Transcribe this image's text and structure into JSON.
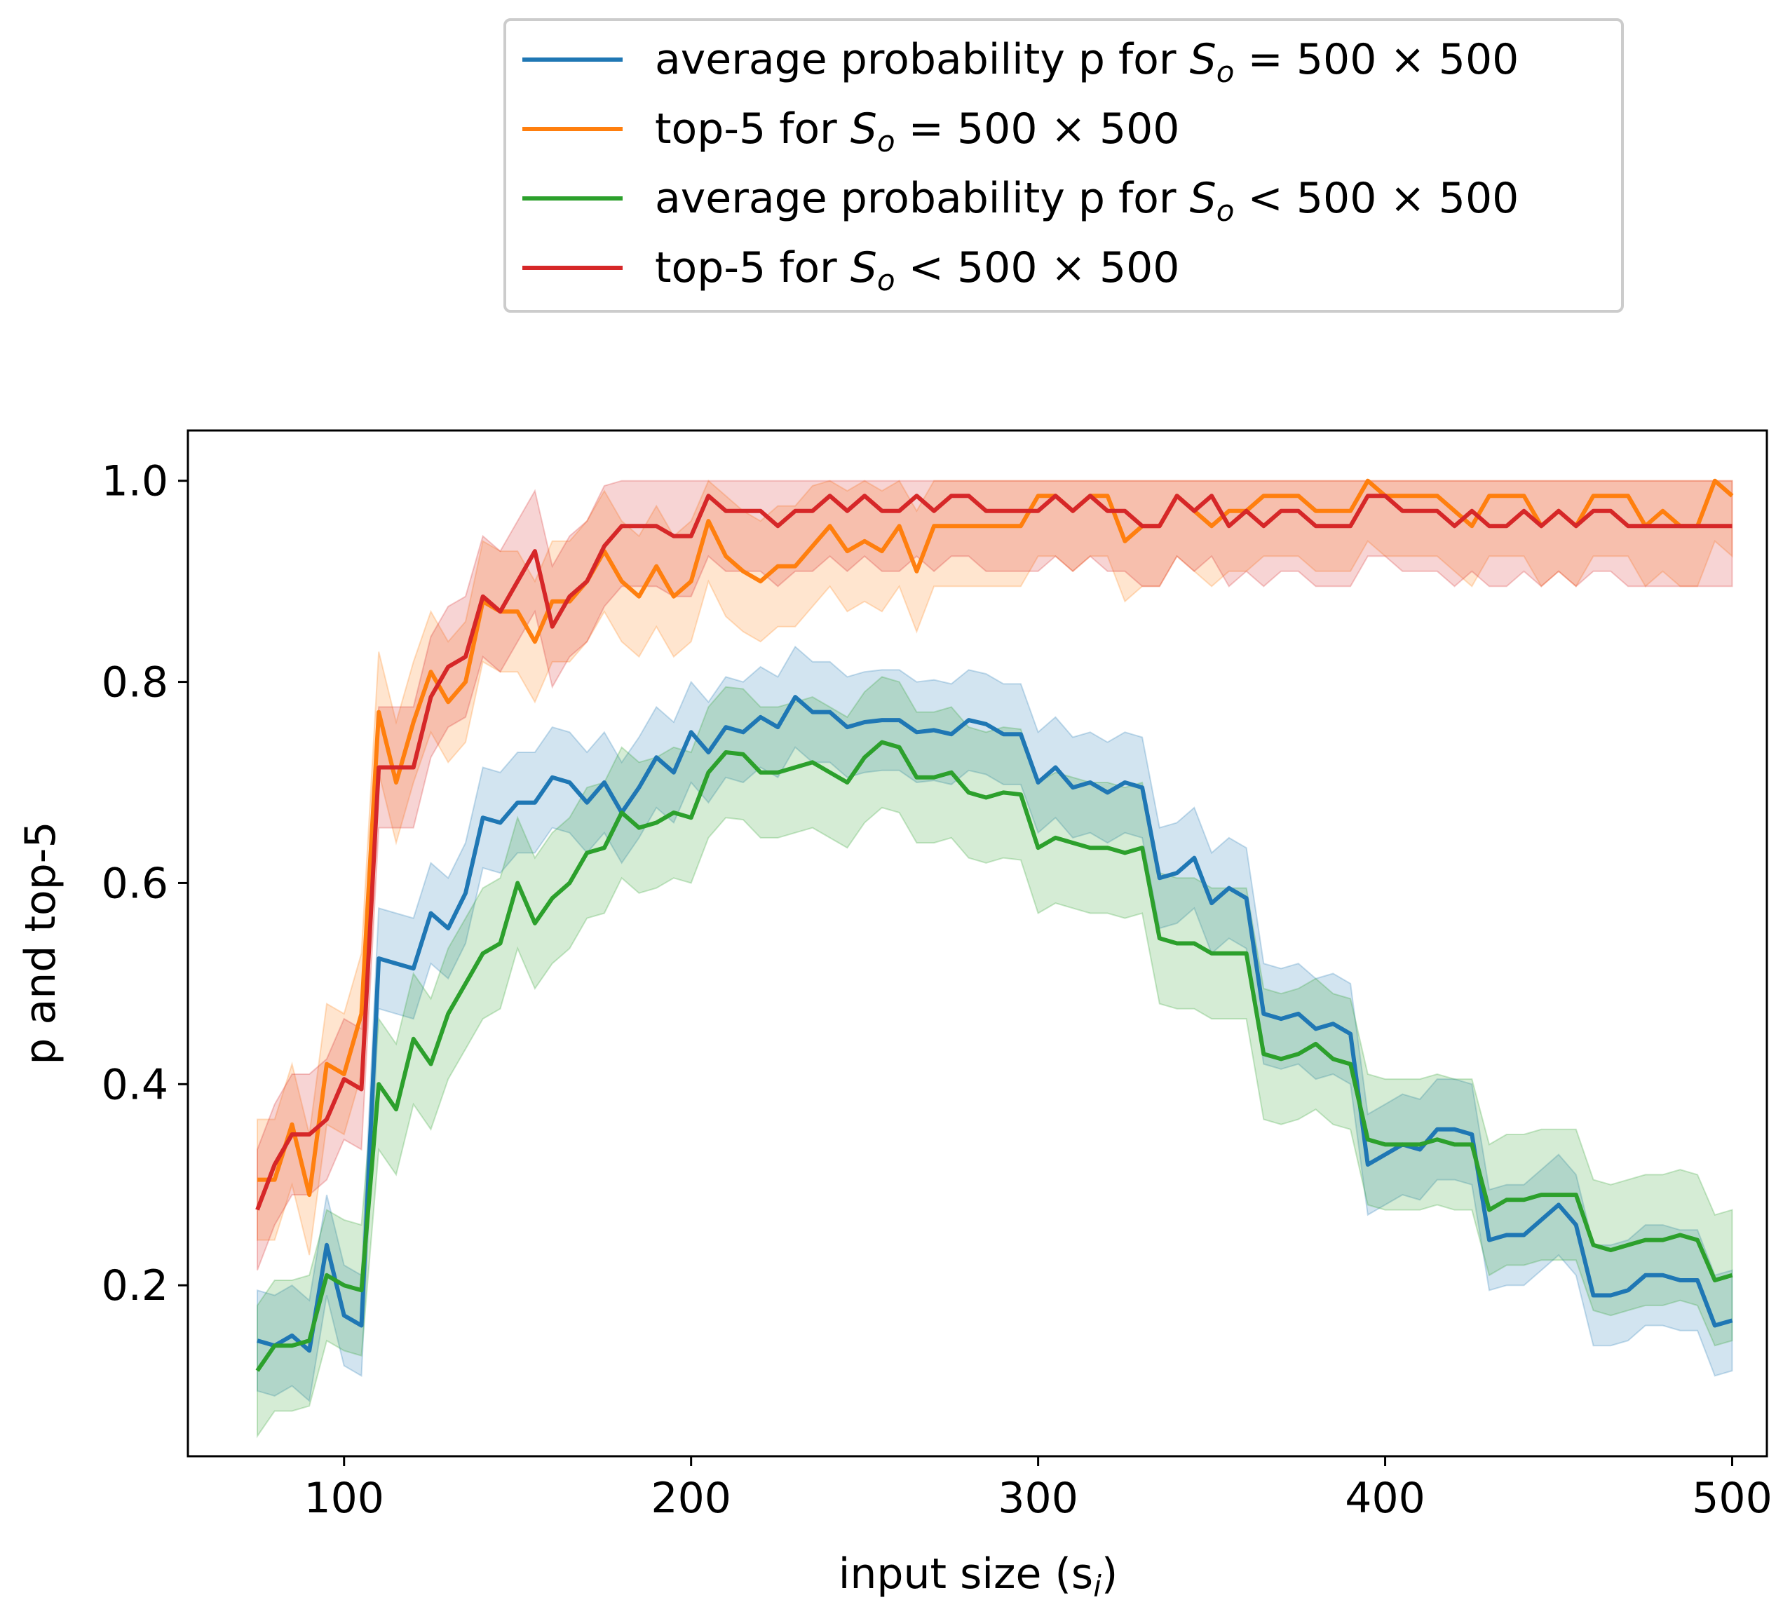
{
  "chart_data": {
    "type": "line",
    "title": "",
    "xlabel": "input size (s",
    "xlabel_sub": "i",
    "xlabel_end": ")",
    "ylabel": "p and top-5",
    "xlim": [
      55,
      510
    ],
    "ylim": [
      0.03,
      1.05
    ],
    "xticks": [
      100,
      200,
      300,
      400,
      500
    ],
    "yticks": [
      0.2,
      0.4,
      0.6,
      0.8,
      1.0
    ],
    "xtick_labels": [
      "100",
      "200",
      "300",
      "400",
      "500"
    ],
    "ytick_labels": [
      "0.2",
      "0.4",
      "0.6",
      "0.8",
      "1.0"
    ],
    "grid": false,
    "legend_position": "top-center, outside",
    "x": [
      75,
      80,
      85,
      90,
      95,
      100,
      105,
      110,
      115,
      120,
      125,
      130,
      135,
      140,
      145,
      150,
      155,
      160,
      165,
      170,
      175,
      180,
      185,
      190,
      195,
      200,
      205,
      210,
      215,
      220,
      225,
      230,
      235,
      240,
      245,
      250,
      255,
      260,
      265,
      270,
      275,
      280,
      285,
      290,
      295,
      300,
      305,
      310,
      315,
      320,
      325,
      330,
      335,
      340,
      345,
      350,
      355,
      360,
      365,
      370,
      375,
      380,
      385,
      390,
      395,
      400,
      405,
      410,
      415,
      420,
      425,
      430,
      435,
      440,
      445,
      450,
      455,
      460,
      465,
      470,
      475,
      480,
      485,
      490,
      495,
      500
    ],
    "series": [
      {
        "name": "average probability p for S_o = 500 × 500",
        "legend_prefix": "average probability p for ",
        "legend_suffix": " = 500 × 500",
        "color": "#1f77b4",
        "values": [
          0.145,
          0.14,
          0.15,
          0.135,
          0.24,
          0.17,
          0.16,
          0.525,
          0.52,
          0.515,
          0.57,
          0.555,
          0.59,
          0.665,
          0.66,
          0.68,
          0.68,
          0.705,
          0.7,
          0.68,
          0.7,
          0.67,
          0.695,
          0.725,
          0.71,
          0.75,
          0.73,
          0.755,
          0.75,
          0.765,
          0.755,
          0.785,
          0.77,
          0.77,
          0.755,
          0.76,
          0.762,
          0.762,
          0.75,
          0.752,
          0.748,
          0.762,
          0.758,
          0.748,
          0.748,
          0.7,
          0.715,
          0.695,
          0.7,
          0.69,
          0.7,
          0.695,
          0.605,
          0.61,
          0.625,
          0.58,
          0.595,
          0.585,
          0.47,
          0.465,
          0.47,
          0.455,
          0.46,
          0.45,
          0.32,
          0.33,
          0.34,
          0.335,
          0.355,
          0.355,
          0.35,
          0.245,
          0.25,
          0.25,
          0.265,
          0.28,
          0.26,
          0.19,
          0.19,
          0.195,
          0.21,
          0.21,
          0.205,
          0.205,
          0.16,
          0.165
        ],
        "band": 0.05
      },
      {
        "name": "top-5 for S_o = 500 × 500",
        "legend_prefix": "top-5 for ",
        "legend_suffix": " = 500 × 500",
        "color": "#ff7f0e",
        "values": [
          0.305,
          0.305,
          0.36,
          0.29,
          0.42,
          0.41,
          0.47,
          0.77,
          0.7,
          0.76,
          0.81,
          0.78,
          0.8,
          0.88,
          0.87,
          0.87,
          0.84,
          0.88,
          0.88,
          0.9,
          0.93,
          0.9,
          0.885,
          0.915,
          0.885,
          0.9,
          0.96,
          0.925,
          0.91,
          0.9,
          0.915,
          0.915,
          0.935,
          0.955,
          0.93,
          0.94,
          0.93,
          0.955,
          0.91,
          0.955,
          0.955,
          0.955,
          0.955,
          0.955,
          0.955,
          0.985,
          0.985,
          0.97,
          0.985,
          0.985,
          0.94,
          0.955,
          0.955,
          0.985,
          0.97,
          0.955,
          0.97,
          0.97,
          0.985,
          0.985,
          0.985,
          0.97,
          0.97,
          0.97,
          1.0,
          0.985,
          0.985,
          0.985,
          0.985,
          0.97,
          0.955,
          0.985,
          0.985,
          0.985,
          0.955,
          0.97,
          0.955,
          0.985,
          0.985,
          0.985,
          0.955,
          0.97,
          0.955,
          0.955,
          1.0,
          0.985
        ],
        "band": 0.06
      },
      {
        "name": "average probability p for S_o < 500 × 500",
        "legend_prefix": "average probability p for ",
        "legend_suffix": " < 500 × 500",
        "color": "#2ca02c",
        "values": [
          0.115,
          0.14,
          0.14,
          0.145,
          0.21,
          0.2,
          0.195,
          0.4,
          0.375,
          0.445,
          0.42,
          0.47,
          0.5,
          0.53,
          0.54,
          0.6,
          0.56,
          0.585,
          0.6,
          0.63,
          0.635,
          0.67,
          0.655,
          0.66,
          0.67,
          0.665,
          0.71,
          0.73,
          0.728,
          0.71,
          0.71,
          0.715,
          0.72,
          0.71,
          0.7,
          0.725,
          0.74,
          0.735,
          0.705,
          0.705,
          0.71,
          0.69,
          0.685,
          0.69,
          0.688,
          0.635,
          0.645,
          0.64,
          0.635,
          0.635,
          0.63,
          0.635,
          0.545,
          0.54,
          0.54,
          0.53,
          0.53,
          0.53,
          0.43,
          0.425,
          0.43,
          0.44,
          0.425,
          0.42,
          0.345,
          0.34,
          0.34,
          0.34,
          0.345,
          0.34,
          0.34,
          0.275,
          0.285,
          0.285,
          0.29,
          0.29,
          0.29,
          0.24,
          0.235,
          0.24,
          0.245,
          0.245,
          0.25,
          0.245,
          0.205,
          0.21
        ],
        "band": 0.065
      },
      {
        "name": "top-5 for S_o < 500 × 500",
        "legend_prefix": "top-5 for ",
        "legend_suffix": " < 500 × 500",
        "color": "#d62728",
        "values": [
          0.275,
          0.32,
          0.35,
          0.35,
          0.365,
          0.405,
          0.395,
          0.715,
          0.715,
          0.715,
          0.785,
          0.815,
          0.825,
          0.885,
          0.87,
          0.9,
          0.93,
          0.855,
          0.885,
          0.9,
          0.935,
          0.955,
          0.955,
          0.955,
          0.945,
          0.945,
          0.985,
          0.97,
          0.97,
          0.97,
          0.955,
          0.97,
          0.97,
          0.985,
          0.97,
          0.985,
          0.97,
          0.97,
          0.985,
          0.97,
          0.985,
          0.985,
          0.97,
          0.97,
          0.97,
          0.97,
          0.985,
          0.97,
          0.985,
          0.97,
          0.97,
          0.955,
          0.955,
          0.985,
          0.97,
          0.985,
          0.955,
          0.97,
          0.955,
          0.97,
          0.97,
          0.955,
          0.955,
          0.955,
          0.985,
          0.985,
          0.97,
          0.97,
          0.97,
          0.955,
          0.97,
          0.955,
          0.955,
          0.97,
          0.955,
          0.97,
          0.955,
          0.97,
          0.97,
          0.955,
          0.955,
          0.955,
          0.955,
          0.955,
          0.955,
          0.955
        ],
        "band": 0.06
      }
    ]
  }
}
